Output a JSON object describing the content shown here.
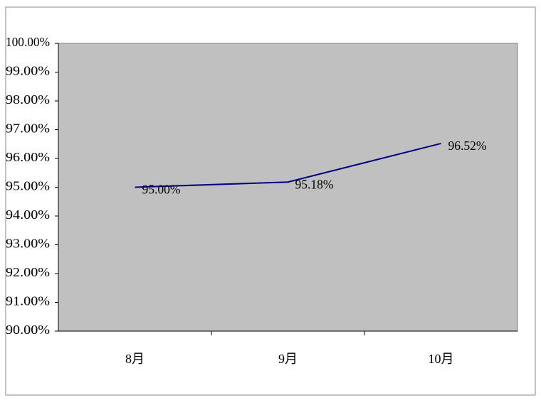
{
  "chart_data": {
    "type": "line",
    "categories": [
      "8月",
      "9月",
      "10月"
    ],
    "series": [
      {
        "color": "#000080",
        "values": [
          95.0,
          95.18,
          96.52
        ],
        "value_labels": [
          "95.00%",
          "95.18%",
          "96.52%"
        ]
      }
    ],
    "ylim": [
      90,
      100
    ],
    "yticks": [
      {
        "value": 90,
        "label": "90.00%"
      },
      {
        "value": 91,
        "label": "91.00%"
      },
      {
        "value": 92,
        "label": "92.00%"
      },
      {
        "value": 93,
        "label": "93.00%"
      },
      {
        "value": 94,
        "label": "94.00%"
      },
      {
        "value": 95,
        "label": "95.00%"
      },
      {
        "value": 96,
        "label": "96.00%"
      },
      {
        "value": 97,
        "label": "97.00%"
      },
      {
        "value": 98,
        "label": "98.00%"
      },
      {
        "value": 99,
        "label": "99.00%"
      },
      {
        "value": 100,
        "label": "100.00%"
      }
    ],
    "plot_background": "#c0c0c0"
  }
}
